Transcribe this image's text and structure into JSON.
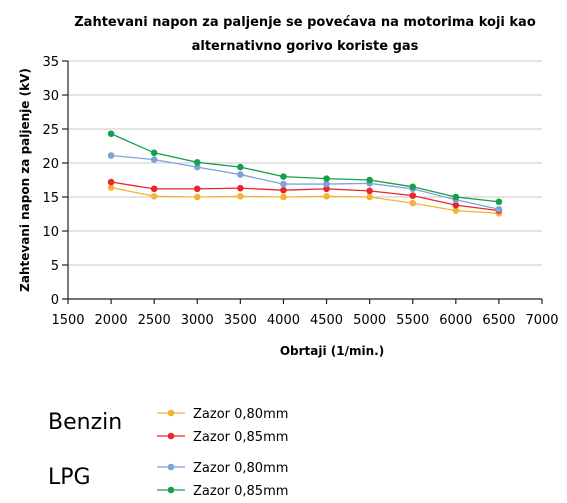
{
  "chart_data": {
    "type": "line",
    "title_lines": [
      "Zahtevani napon za paljenje se povećava na motorima koji kao",
      "alternativno gorivo koriste gas"
    ],
    "xlabel": "Obrtaji  (1/min.)",
    "ylabel": "Zahtevani napon za paljenje  (kV)",
    "xlim": [
      1500,
      7000
    ],
    "ylim": [
      0,
      35
    ],
    "x_ticks": [
      1500,
      2000,
      2500,
      3000,
      3500,
      4000,
      4500,
      5000,
      5500,
      6000,
      6500,
      7000
    ],
    "y_ticks": [
      0,
      5,
      10,
      15,
      20,
      25,
      30,
      35
    ],
    "grid": "horizontal",
    "x": [
      2000,
      2500,
      3000,
      3500,
      4000,
      4500,
      5000,
      5500,
      6000,
      6500
    ],
    "series": [
      {
        "name": "Zazor 0,80mm",
        "group": "Benzin",
        "color": "#f5b335",
        "values": [
          16.4,
          15.1,
          15.0,
          15.1,
          15.0,
          15.1,
          15.0,
          14.1,
          13.0,
          12.6
        ]
      },
      {
        "name": "Zazor 0,85mm",
        "group": "Benzin",
        "color": "#e8262b",
        "values": [
          17.2,
          16.2,
          16.2,
          16.3,
          16.0,
          16.2,
          15.9,
          15.2,
          13.8,
          13.0
        ]
      },
      {
        "name": "Zazor 0,80mm",
        "group": "LPG",
        "color": "#7fa3d9",
        "values": [
          21.1,
          20.5,
          19.4,
          18.3,
          16.9,
          16.9,
          17.0,
          16.2,
          14.6,
          13.2
        ]
      },
      {
        "name": "Zazor 0,85mm",
        "group": "LPG",
        "color": "#16a04a",
        "values": [
          24.3,
          21.5,
          20.1,
          19.4,
          18.0,
          17.7,
          17.5,
          16.5,
          15.0,
          14.3
        ]
      }
    ],
    "legend_groups": [
      {
        "label": "Benzin",
        "series_indices": [
          0,
          1
        ]
      },
      {
        "label": "LPG",
        "series_indices": [
          2,
          3
        ]
      }
    ]
  }
}
